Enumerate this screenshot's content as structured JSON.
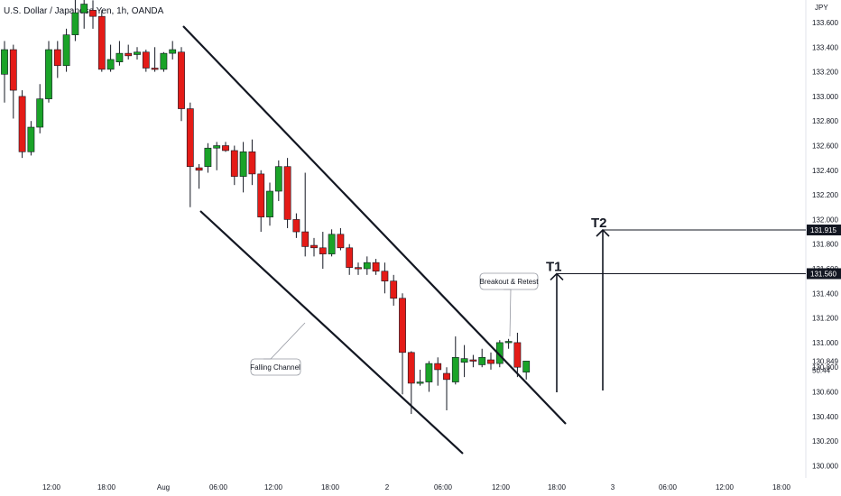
{
  "header": {
    "title": "U.S. Dollar / Japanese Yen, 1h, OANDA"
  },
  "chart_data": {
    "type": "candlestick",
    "symbol": "U.S. Dollar / Japanese Yen, 1h, OANDA",
    "currency_label": "JPY",
    "ylim": [
      130.0,
      133.8
    ],
    "price_ticks": [
      "133.600",
      "133.400",
      "133.200",
      "133.000",
      "132.800",
      "132.600",
      "132.400",
      "132.200",
      "132.000",
      "131.800",
      "131.600",
      "131.400",
      "131.200",
      "131.000",
      "130.800",
      "130.600",
      "130.400",
      "130.200",
      "130.000"
    ],
    "time_labels": [
      "12:00",
      "18:00",
      "Aug",
      "06:00",
      "12:00",
      "18:00",
      "2",
      "06:00",
      "12:00",
      "18:00",
      "3",
      "06:00",
      "12:00",
      "18:00"
    ],
    "current_price": "130.849",
    "countdown": "50:44",
    "candles": [
      {
        "o": 133.18,
        "h": 133.45,
        "l": 132.95,
        "c": 133.38
      },
      {
        "o": 133.38,
        "h": 133.42,
        "l": 132.82,
        "c": 133.05
      },
      {
        "o": 133.0,
        "h": 133.05,
        "l": 132.5,
        "c": 132.55
      },
      {
        "o": 132.55,
        "h": 132.8,
        "l": 132.52,
        "c": 132.75
      },
      {
        "o": 132.75,
        "h": 133.1,
        "l": 132.7,
        "c": 132.98
      },
      {
        "o": 132.98,
        "h": 133.45,
        "l": 132.95,
        "c": 133.38
      },
      {
        "o": 133.38,
        "h": 133.45,
        "l": 133.15,
        "c": 133.25
      },
      {
        "o": 133.25,
        "h": 133.55,
        "l": 133.2,
        "c": 133.5
      },
      {
        "o": 133.5,
        "h": 133.8,
        "l": 133.45,
        "c": 133.68
      },
      {
        "o": 133.68,
        "h": 133.8,
        "l": 133.55,
        "c": 133.75
      },
      {
        "o": 133.7,
        "h": 133.78,
        "l": 133.55,
        "c": 133.65
      },
      {
        "o": 133.65,
        "h": 133.7,
        "l": 133.2,
        "c": 133.22
      },
      {
        "o": 133.22,
        "h": 133.42,
        "l": 133.2,
        "c": 133.3
      },
      {
        "o": 133.28,
        "h": 133.45,
        "l": 133.25,
        "c": 133.35
      },
      {
        "o": 133.35,
        "h": 133.42,
        "l": 133.3,
        "c": 133.33
      },
      {
        "o": 133.34,
        "h": 133.4,
        "l": 133.3,
        "c": 133.36
      },
      {
        "o": 133.36,
        "h": 133.38,
        "l": 133.2,
        "c": 133.23
      },
      {
        "o": 133.23,
        "h": 133.4,
        "l": 133.2,
        "c": 133.22
      },
      {
        "o": 133.22,
        "h": 133.36,
        "l": 133.2,
        "c": 133.35
      },
      {
        "o": 133.35,
        "h": 133.45,
        "l": 133.3,
        "c": 133.38
      },
      {
        "o": 133.36,
        "h": 133.4,
        "l": 132.8,
        "c": 132.9
      },
      {
        "o": 132.9,
        "h": 132.95,
        "l": 132.1,
        "c": 132.43
      },
      {
        "o": 132.42,
        "h": 132.45,
        "l": 132.25,
        "c": 132.4
      },
      {
        "o": 132.43,
        "h": 132.62,
        "l": 132.38,
        "c": 132.58
      },
      {
        "o": 132.58,
        "h": 132.63,
        "l": 132.4,
        "c": 132.6
      },
      {
        "o": 132.6,
        "h": 132.63,
        "l": 132.55,
        "c": 132.56
      },
      {
        "o": 132.56,
        "h": 132.6,
        "l": 132.28,
        "c": 132.35
      },
      {
        "o": 132.35,
        "h": 132.63,
        "l": 132.22,
        "c": 132.55
      },
      {
        "o": 132.55,
        "h": 132.65,
        "l": 132.28,
        "c": 132.37
      },
      {
        "o": 132.37,
        "h": 132.4,
        "l": 131.9,
        "c": 132.02
      },
      {
        "o": 132.02,
        "h": 132.3,
        "l": 131.95,
        "c": 132.23
      },
      {
        "o": 132.23,
        "h": 132.48,
        "l": 132.15,
        "c": 132.43
      },
      {
        "o": 132.43,
        "h": 132.5,
        "l": 131.93,
        "c": 132.0
      },
      {
        "o": 132.0,
        "h": 132.05,
        "l": 131.85,
        "c": 131.9
      },
      {
        "o": 131.9,
        "h": 132.38,
        "l": 131.7,
        "c": 131.78
      },
      {
        "o": 131.79,
        "h": 131.85,
        "l": 131.7,
        "c": 131.77
      },
      {
        "o": 131.77,
        "h": 131.9,
        "l": 131.6,
        "c": 131.72
      },
      {
        "o": 131.72,
        "h": 131.92,
        "l": 131.7,
        "c": 131.88
      },
      {
        "o": 131.88,
        "h": 131.93,
        "l": 131.75,
        "c": 131.77
      },
      {
        "o": 131.77,
        "h": 131.8,
        "l": 131.55,
        "c": 131.61
      },
      {
        "o": 131.61,
        "h": 131.65,
        "l": 131.55,
        "c": 131.6
      },
      {
        "o": 131.6,
        "h": 131.7,
        "l": 131.55,
        "c": 131.65
      },
      {
        "o": 131.65,
        "h": 131.68,
        "l": 131.55,
        "c": 131.58
      },
      {
        "o": 131.58,
        "h": 131.65,
        "l": 131.4,
        "c": 131.5
      },
      {
        "o": 131.5,
        "h": 131.55,
        "l": 131.3,
        "c": 131.36
      },
      {
        "o": 131.36,
        "h": 131.4,
        "l": 130.58,
        "c": 130.92
      },
      {
        "o": 130.92,
        "h": 130.93,
        "l": 130.42,
        "c": 130.67
      },
      {
        "o": 130.67,
        "h": 130.78,
        "l": 130.65,
        "c": 130.68
      },
      {
        "o": 130.68,
        "h": 130.85,
        "l": 130.6,
        "c": 130.83
      },
      {
        "o": 130.83,
        "h": 130.88,
        "l": 130.65,
        "c": 130.78
      },
      {
        "o": 130.75,
        "h": 130.8,
        "l": 130.45,
        "c": 130.7
      },
      {
        "o": 130.68,
        "h": 131.05,
        "l": 130.66,
        "c": 130.88
      },
      {
        "o": 130.84,
        "h": 130.98,
        "l": 130.72,
        "c": 130.87
      },
      {
        "o": 130.86,
        "h": 130.9,
        "l": 130.8,
        "c": 130.85
      },
      {
        "o": 130.82,
        "h": 130.95,
        "l": 130.8,
        "c": 130.88
      },
      {
        "o": 130.86,
        "h": 130.92,
        "l": 130.78,
        "c": 130.83
      },
      {
        "o": 130.83,
        "h": 131.02,
        "l": 130.8,
        "c": 131.0
      },
      {
        "o": 131.0,
        "h": 131.03,
        "l": 130.95,
        "c": 131.01
      },
      {
        "o": 131.0,
        "h": 131.08,
        "l": 130.72,
        "c": 130.8
      },
      {
        "o": 130.76,
        "h": 130.85,
        "l": 130.7,
        "c": 130.85
      }
    ],
    "levels": [
      {
        "label": "T1",
        "price": 131.56,
        "tag": "131.560"
      },
      {
        "label": "T2",
        "price": 131.915,
        "tag": "131.915"
      }
    ],
    "annotations": [
      {
        "text": "Falling Channel"
      },
      {
        "text": "Breakout & Retest"
      }
    ],
    "colors": {
      "up": "#1aa328",
      "down": "#e41b17",
      "line": "#131722",
      "tag_bg": "#131722",
      "tag_text": "#ffffff"
    }
  }
}
